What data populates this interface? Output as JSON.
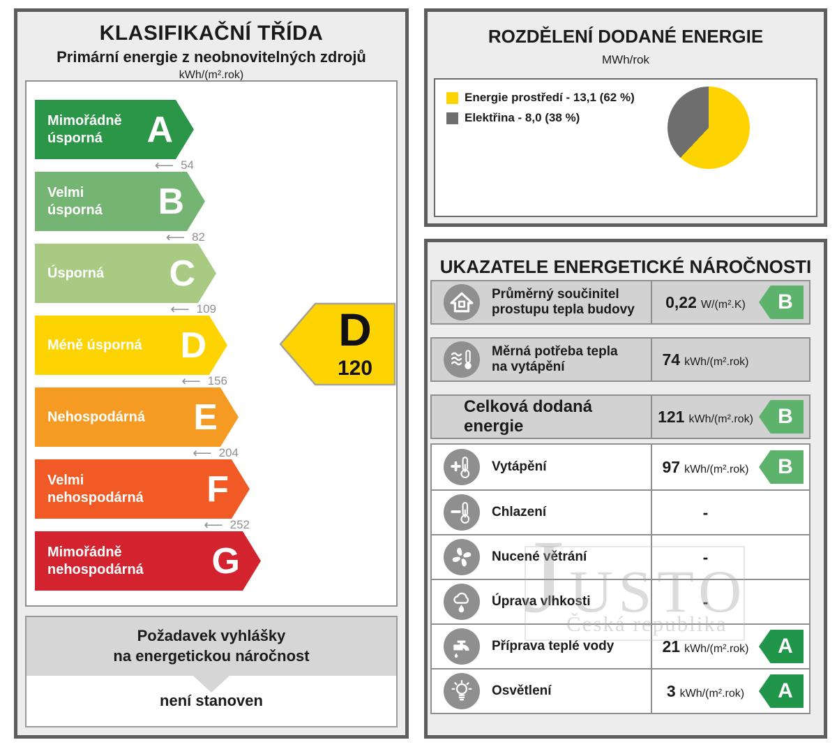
{
  "left_panel": {
    "title": "KLASIFIKAČNÍ TŘÍDA",
    "subtitle": "Primární energie z neobnovitelných zdrojů",
    "unit": "kWh/(m².rok)",
    "classes": [
      {
        "letter": "A",
        "label": "Mimořádně\núsporná",
        "color": "#2b9548",
        "threshold": "54"
      },
      {
        "letter": "B",
        "label": "Velmi\núsporná",
        "color": "#74b573",
        "threshold": "82"
      },
      {
        "letter": "C",
        "label": "Úsporná",
        "color": "#a9ca82",
        "threshold": "109"
      },
      {
        "letter": "D",
        "label": "Méně úsporná",
        "color": "#fdd402",
        "threshold": "156"
      },
      {
        "letter": "E",
        "label": "Nehospodárná",
        "color": "#f59b23",
        "threshold": "204"
      },
      {
        "letter": "F",
        "label": "Velmi\nnehospodárná",
        "color": "#f15a24",
        "threshold": "252"
      },
      {
        "letter": "G",
        "label": "Mimořádně\nnehospodárná",
        "color": "#d2232e",
        "threshold": null
      }
    ],
    "rating": {
      "letter": "D",
      "value": "120",
      "color": "#fdd402",
      "border_color": "#a6a396"
    },
    "requirement": {
      "title": "Požadavek vyhlášky\nna energetickou náročnost",
      "value": "není stanoven"
    }
  },
  "energy_distribution": {
    "title": "ROZDĚLENÍ DODANÉ ENERGIE",
    "unit": "MWh/rok",
    "legend": [
      {
        "label": "Energie prostředí - 13,1 (62 %)",
        "color": "#fdd402"
      },
      {
        "label": "Elektřina - 8,0 (38 %)",
        "color": "#6e6e6e"
      }
    ]
  },
  "chart_data": {
    "type": "pie",
    "title": "ROZDĚLENÍ DODANÉ ENERGIE",
    "unit": "MWh/rok",
    "labels": [
      "Energie prostředí",
      "Elektřina"
    ],
    "values": [
      13.1,
      8.0
    ],
    "percents": [
      62,
      38
    ],
    "colors": [
      "#fdd402",
      "#6e6e6e"
    ],
    "start_angle_deg": 0,
    "direction": "clockwise",
    "legend_position": "left"
  },
  "indicators": {
    "title": "UKAZATELE ENERGETICKÉ NÁROČNOSTI",
    "rating_colors": {
      "A": "#21964a",
      "B": "#5db36b"
    },
    "rows": [
      {
        "icon": "house-icon",
        "label": "Průměrný součinitel\nprostupu tepla budovy",
        "value": "0,22",
        "unit": "W/(m².K)",
        "rating": "B",
        "variant": "gray"
      },
      {
        "icon": "heat-waves-icon",
        "label": "Měrná potřeba tepla\nna vytápění",
        "value": "74",
        "unit": "kWh/(m².rok)",
        "rating": null,
        "variant": "gray"
      },
      {
        "icon": null,
        "label": "Celková dodaná energie",
        "value": "121",
        "unit": "kWh/(m².rok)",
        "rating": "B",
        "variant": "total"
      },
      {
        "icon": "heating-thermometer-icon",
        "label": "Vytápění",
        "value": "97",
        "unit": "kWh/(m².rok)",
        "rating": "B",
        "variant": "white"
      },
      {
        "icon": "cooling-thermometer-icon",
        "label": "Chlazení",
        "value": "-",
        "unit": "",
        "rating": null,
        "variant": "white"
      },
      {
        "icon": "fan-icon",
        "label": "Nucené větrání",
        "value": "-",
        "unit": "",
        "rating": null,
        "variant": "white"
      },
      {
        "icon": "humidity-cloud-icon",
        "label": "Úprava vlhkosti",
        "value": "-",
        "unit": "",
        "rating": null,
        "variant": "white"
      },
      {
        "icon": "water-tap-icon",
        "label": "Příprava teplé vody",
        "value": "21",
        "unit": "kWh/(m².rok)",
        "rating": "A",
        "variant": "white"
      },
      {
        "icon": "light-bulb-icon",
        "label": "Osvětlení",
        "value": "3",
        "unit": "kWh/(m².rok)",
        "rating": "A",
        "variant": "white"
      }
    ]
  },
  "watermark": {
    "line1_initial": "J",
    "line1_rest": "USTO",
    "line2": "Česká republika"
  }
}
